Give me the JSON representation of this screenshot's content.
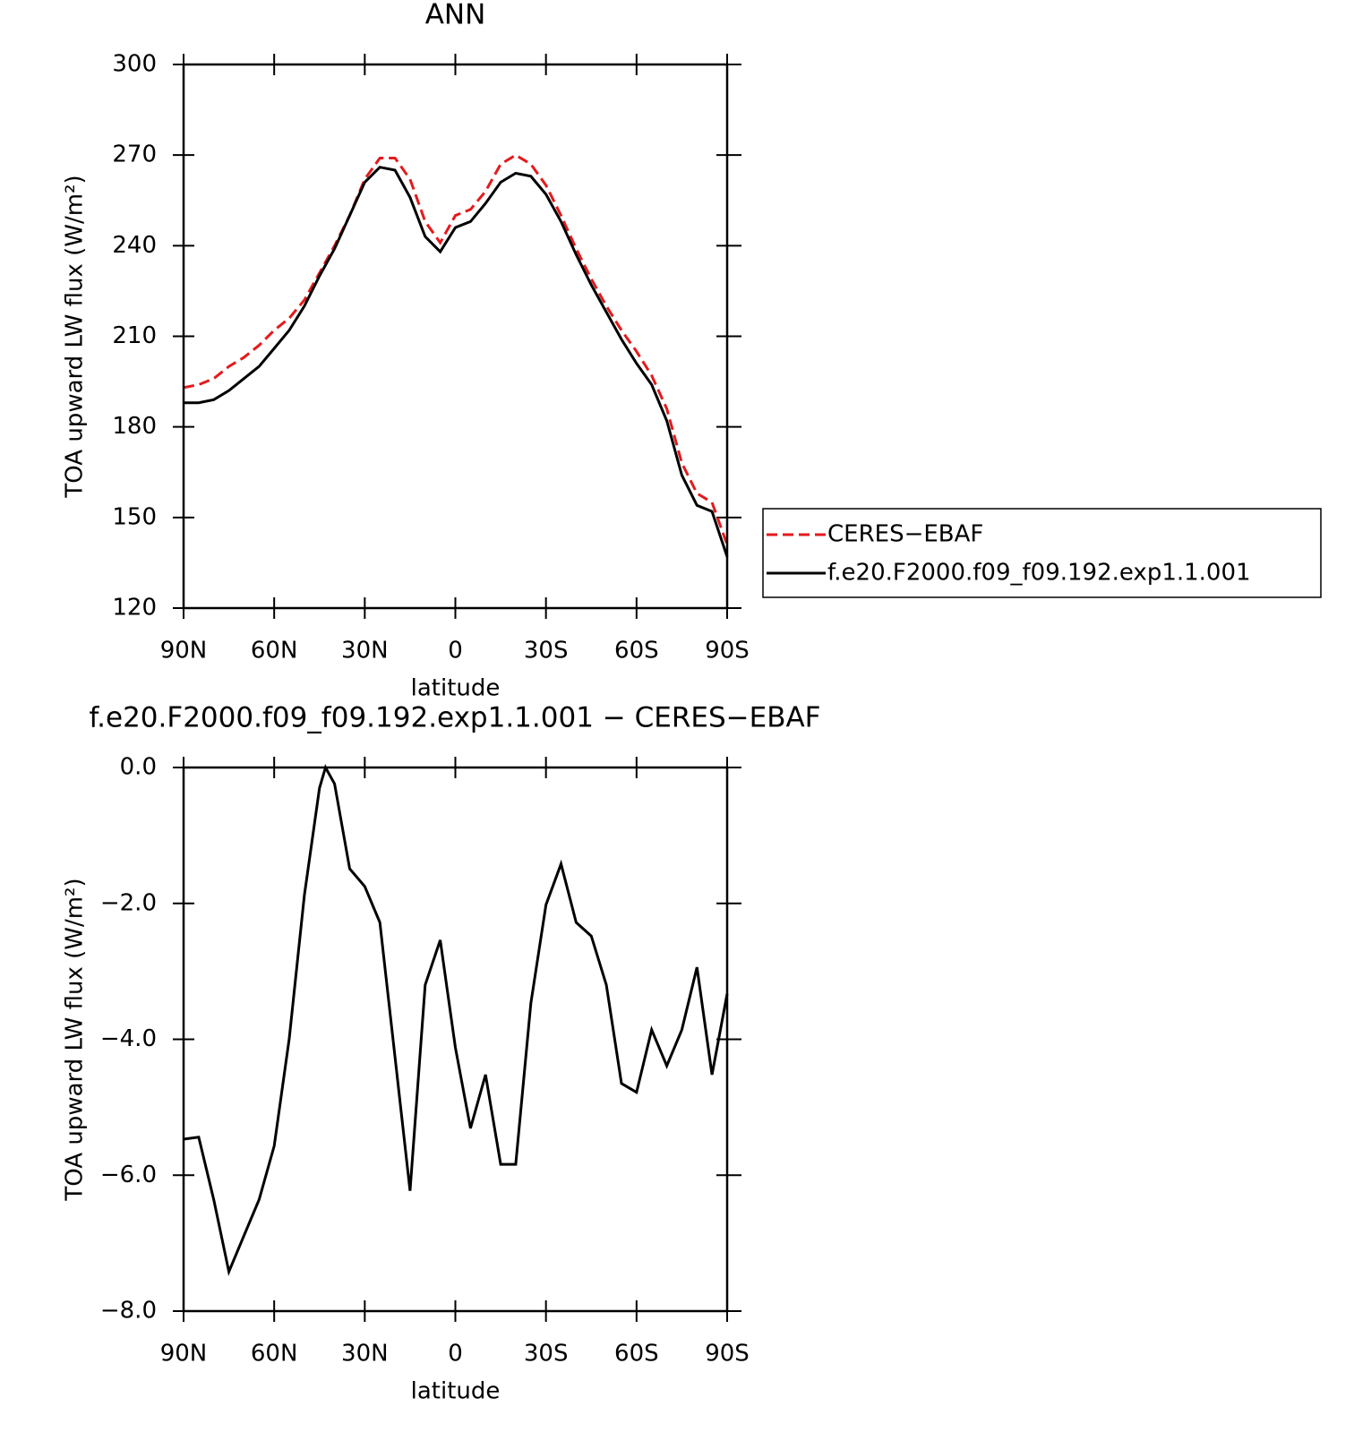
{
  "chart_data": [
    {
      "type": "line",
      "title": "ANN",
      "xlabel": "latitude",
      "ylabel": "TOA upward LW flux (W/m²)",
      "x": [
        90,
        85,
        80,
        75,
        70,
        65,
        60,
        55,
        50,
        45,
        40,
        35,
        30,
        25,
        20,
        15,
        10,
        5,
        0,
        -5,
        -10,
        -15,
        -20,
        -25,
        -30,
        -35,
        -40,
        -45,
        -50,
        -55,
        -60,
        -65,
        -70,
        -75,
        -80,
        -85,
        -90
      ],
      "series": [
        {
          "name": "CERES−EBAF",
          "color": "#e41a1c",
          "linestyle": "dashed",
          "values": [
            193,
            194,
            196,
            200,
            203,
            207,
            212,
            216,
            222,
            231,
            240,
            250,
            262,
            269,
            269,
            262,
            248,
            241,
            250,
            252,
            258,
            267,
            270,
            267,
            260,
            250,
            239,
            229,
            220,
            212,
            205,
            197,
            186,
            168,
            158,
            155,
            141
          ]
        },
        {
          "name": "f.e20.F2000.f09_f09.192.exp1.1.001",
          "color": "#000000",
          "linestyle": "solid",
          "values": [
            188,
            188,
            189,
            192,
            196,
            200,
            206,
            212,
            220,
            230,
            239,
            250,
            261,
            266,
            265,
            256,
            243,
            238,
            246,
            248,
            254,
            261,
            264,
            263,
            257,
            248,
            237,
            227,
            218,
            209,
            201,
            194,
            182,
            164,
            154,
            152,
            137
          ]
        }
      ],
      "xlim": [
        90,
        -90
      ],
      "xticks": [
        {
          "value": 90,
          "label": "90N"
        },
        {
          "value": 60,
          "label": "60N"
        },
        {
          "value": 30,
          "label": "30N"
        },
        0,
        {
          "value": -30,
          "label": "30S"
        },
        {
          "value": -60,
          "label": "60S"
        },
        {
          "value": -90,
          "label": "90S"
        }
      ],
      "ylim": [
        120,
        300
      ],
      "yticks": [
        120,
        150,
        180,
        210,
        240,
        270,
        300
      ],
      "legend": "right"
    },
    {
      "type": "line",
      "title": "f.e20.F2000.f09_f09.192.exp1.1.001 − CERES−EBAF",
      "xlabel": "latitude",
      "ylabel": "TOA upward LW flux (W/m²)",
      "x": [
        90,
        85,
        80,
        75,
        70,
        65,
        60,
        55,
        50,
        45,
        43,
        40,
        35,
        30,
        25,
        20,
        15,
        10,
        5,
        0,
        -5,
        -10,
        -15,
        -20,
        -25,
        -30,
        -35,
        -40,
        -45,
        -50,
        -55,
        -60,
        -65,
        -70,
        -75,
        -80,
        -85,
        -90
      ],
      "series": [
        {
          "color": "#000000",
          "linestyle": "solid",
          "values": [
            -5.47,
            -5.44,
            -6.36,
            -7.42,
            -6.89,
            -6.36,
            -5.57,
            -3.99,
            -1.88,
            -0.3,
            0.0,
            -0.24,
            -1.49,
            -1.75,
            -2.28,
            -4.26,
            -6.23,
            -3.2,
            -2.54,
            -4.12,
            -5.31,
            -4.52,
            -5.84,
            -5.84,
            -3.47,
            -2.02,
            -1.42,
            -2.28,
            -2.48,
            -3.2,
            -4.65,
            -4.78,
            -3.86,
            -4.39,
            -3.86,
            -2.94,
            -4.52,
            -3.33
          ]
        }
      ],
      "xlim": [
        90,
        -90
      ],
      "xticks": [
        {
          "value": 90,
          "label": "90N"
        },
        {
          "value": 60,
          "label": "60N"
        },
        {
          "value": 30,
          "label": "30N"
        },
        0,
        {
          "value": -30,
          "label": "30S"
        },
        {
          "value": -60,
          "label": "60S"
        },
        {
          "value": -90,
          "label": "90S"
        }
      ],
      "ylim": [
        -8,
        0
      ],
      "yticks": [
        {
          "value": -8,
          "label": "−8.0"
        },
        {
          "value": -6,
          "label": "−6.0"
        },
        {
          "value": -4,
          "label": "−4.0"
        },
        {
          "value": -2,
          "label": "−2.0"
        },
        {
          "value": 0,
          "label": "0.0"
        }
      ]
    }
  ]
}
